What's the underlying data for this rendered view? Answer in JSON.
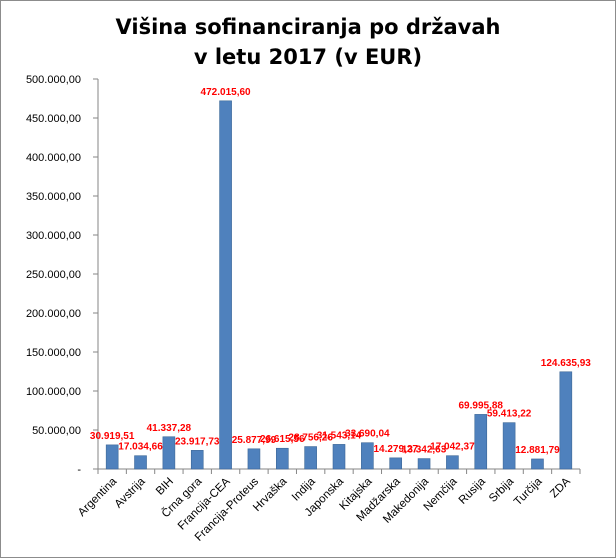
{
  "chart_data": {
    "type": "bar",
    "title_line1": "Višina sofinanciranja po državah",
    "title_line2": "v letu 2017 (v EUR)",
    "categories": [
      "Argentina",
      "Avstrija",
      "BIH",
      "Črna gora",
      "Francija-CEA",
      "Francija-Proteus",
      "Hrvaška",
      "Indija",
      "Japonska",
      "Kitajska",
      "Madžarska",
      "Makedonija",
      "Nemčija",
      "Rusija",
      "Srbija",
      "Turčija",
      "ZDA"
    ],
    "values": [
      30919.51,
      17034.66,
      41337.28,
      23917.73,
      472015.6,
      25877.99,
      26615.56,
      28756.26,
      31543.14,
      33690.04,
      14279.27,
      13342.63,
      17042.37,
      69995.88,
      59413.22,
      12881.79,
      124635.93
    ],
    "value_labels": [
      "30.919,51",
      "17.034,66",
      "41.337,28",
      "23.917,73",
      "472.015,60",
      "25.877,99",
      "26.615,56",
      "28.756,26",
      "31.543,14",
      "33.690,04",
      "14.279,27",
      "13.342,63",
      "17.042,37",
      "69.995,88",
      "59.413,22",
      "12.881,79",
      "124.635,93"
    ],
    "y_tick_labels": [
      "-",
      "50.000,00",
      "100.000,00",
      "150.000,00",
      "200.000,00",
      "250.000,00",
      "300.000,00",
      "350.000,00",
      "400.000,00",
      "450.000,00",
      "500.000,00"
    ],
    "ylim": [
      0,
      500000
    ],
    "ystep": 50000,
    "grid": false,
    "legend": "none",
    "colors": {
      "bar": "#4f81bd",
      "bar_edge": "#3c6796",
      "label": "#ff0000",
      "axis": "#868686"
    }
  }
}
